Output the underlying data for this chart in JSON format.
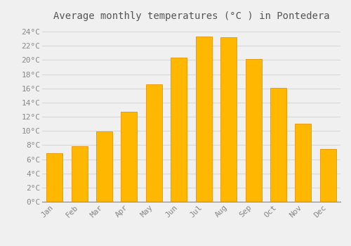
{
  "title": "Average monthly temperatures (°C ) in Pontedera",
  "months": [
    "Jan",
    "Feb",
    "Mar",
    "Apr",
    "May",
    "Jun",
    "Jul",
    "Aug",
    "Sep",
    "Oct",
    "Nov",
    "Dec"
  ],
  "temperatures": [
    6.8,
    7.8,
    9.9,
    12.7,
    16.6,
    20.3,
    23.3,
    23.2,
    20.1,
    16.1,
    11.0,
    7.4
  ],
  "bar_color_top": "#FFB700",
  "bar_color_bottom": "#FFA500",
  "bar_edge_color": "#E89400",
  "background_color": "#F0F0F0",
  "grid_color": "#D8D8D8",
  "text_color": "#888888",
  "title_color": "#555555",
  "ylim": [
    0,
    25
  ],
  "yticks": [
    0,
    2,
    4,
    6,
    8,
    10,
    12,
    14,
    16,
    18,
    20,
    22,
    24
  ],
  "title_fontsize": 10,
  "tick_fontsize": 8,
  "bar_width": 0.65
}
